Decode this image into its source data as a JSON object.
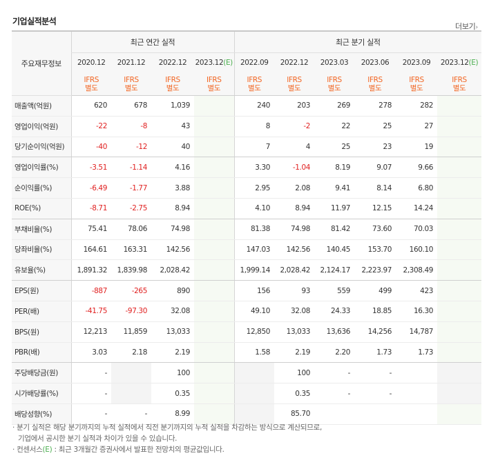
{
  "section_title": "기업실적분석",
  "more_label": "더보기",
  "more_arrow": "›",
  "header": {
    "row_label": "주요재무정보",
    "annual_group": "최근 연간 실적",
    "quarter_group": "최근 분기 실적",
    "periods": [
      "2020.12",
      "2021.12",
      "2022.12",
      "2023.12",
      "2022.09",
      "2022.12",
      "2023.03",
      "2023.06",
      "2023.09",
      "2023.12"
    ],
    "estimate_mark": "(E)",
    "standard_line1": "IFRS",
    "standard_line2": "별도"
  },
  "rows": [
    {
      "label": "매출액(억원)",
      "values": [
        "620",
        "678",
        "1,039",
        "",
        "240",
        "203",
        "269",
        "278",
        "282",
        ""
      ]
    },
    {
      "label": "영업이익(억원)",
      "values": [
        "-22",
        "-8",
        "43",
        "",
        "8",
        "-2",
        "22",
        "25",
        "27",
        ""
      ]
    },
    {
      "label": "당기순이익(억원)",
      "values": [
        "-40",
        "-12",
        "40",
        "",
        "7",
        "4",
        "25",
        "23",
        "19",
        ""
      ]
    },
    {
      "label": "영업이익률(%)",
      "values": [
        "-3.51",
        "-1.14",
        "4.16",
        "",
        "3.30",
        "-1.04",
        "8.19",
        "9.07",
        "9.66",
        ""
      ]
    },
    {
      "label": "순이익률(%)",
      "values": [
        "-6.49",
        "-1.77",
        "3.88",
        "",
        "2.95",
        "2.08",
        "9.41",
        "8.14",
        "6.80",
        ""
      ]
    },
    {
      "label": "ROE(%)",
      "values": [
        "-8.71",
        "-2.75",
        "8.94",
        "",
        "4.10",
        "8.94",
        "11.97",
        "12.15",
        "14.24",
        ""
      ]
    },
    {
      "label": "부채비율(%)",
      "values": [
        "75.41",
        "78.06",
        "74.98",
        "",
        "81.38",
        "74.98",
        "81.42",
        "73.60",
        "70.03",
        ""
      ]
    },
    {
      "label": "당좌비율(%)",
      "values": [
        "164.61",
        "163.31",
        "142.56",
        "",
        "147.03",
        "142.56",
        "140.45",
        "153.70",
        "160.10",
        ""
      ]
    },
    {
      "label": "유보율(%)",
      "values": [
        "1,891.32",
        "1,839.98",
        "2,028.42",
        "",
        "1,999.14",
        "2,028.42",
        "2,124.17",
        "2,223.97",
        "2,308.49",
        ""
      ]
    },
    {
      "label": "EPS(원)",
      "values": [
        "-887",
        "-265",
        "890",
        "",
        "156",
        "93",
        "559",
        "499",
        "423",
        ""
      ]
    },
    {
      "label": "PER(배)",
      "values": [
        "-41.75",
        "-97.30",
        "32.08",
        "",
        "49.10",
        "32.08",
        "24.33",
        "18.85",
        "16.30",
        ""
      ]
    },
    {
      "label": "BPS(원)",
      "values": [
        "12,213",
        "11,859",
        "13,033",
        "",
        "12,850",
        "13,033",
        "13,636",
        "14,256",
        "14,787",
        ""
      ]
    },
    {
      "label": "PBR(배)",
      "values": [
        "3.03",
        "2.18",
        "2.19",
        "",
        "1.58",
        "2.19",
        "2.20",
        "1.73",
        "1.73",
        ""
      ]
    },
    {
      "label": "주당배당금(원)",
      "values": [
        "-",
        "",
        "100",
        "",
        "",
        "100",
        "-",
        "-",
        "",
        ""
      ]
    },
    {
      "label": "시가배당률(%)",
      "values": [
        "-",
        "",
        "0.35",
        "",
        "",
        "0.35",
        "-",
        "-",
        "",
        ""
      ]
    },
    {
      "label": "배당성향(%)",
      "values": [
        "-",
        "-",
        "8.99",
        "",
        "",
        "85.70",
        "",
        "",
        "",
        ""
      ]
    }
  ],
  "notes": [
    "· 분기 실적은 해당 분기까지의 누적 실적에서 직전 분기까지의 누적 실적을 차감하는 방식으로 계산되므로,",
    "기업에서 공시한 분기 실적과 차이가 있을 수 있습니다.",
    "· 컨센서스",
    "(E)",
    " : 최근 3개월간 증권사에서 발표한 전망치의 평균값입니다."
  ]
}
